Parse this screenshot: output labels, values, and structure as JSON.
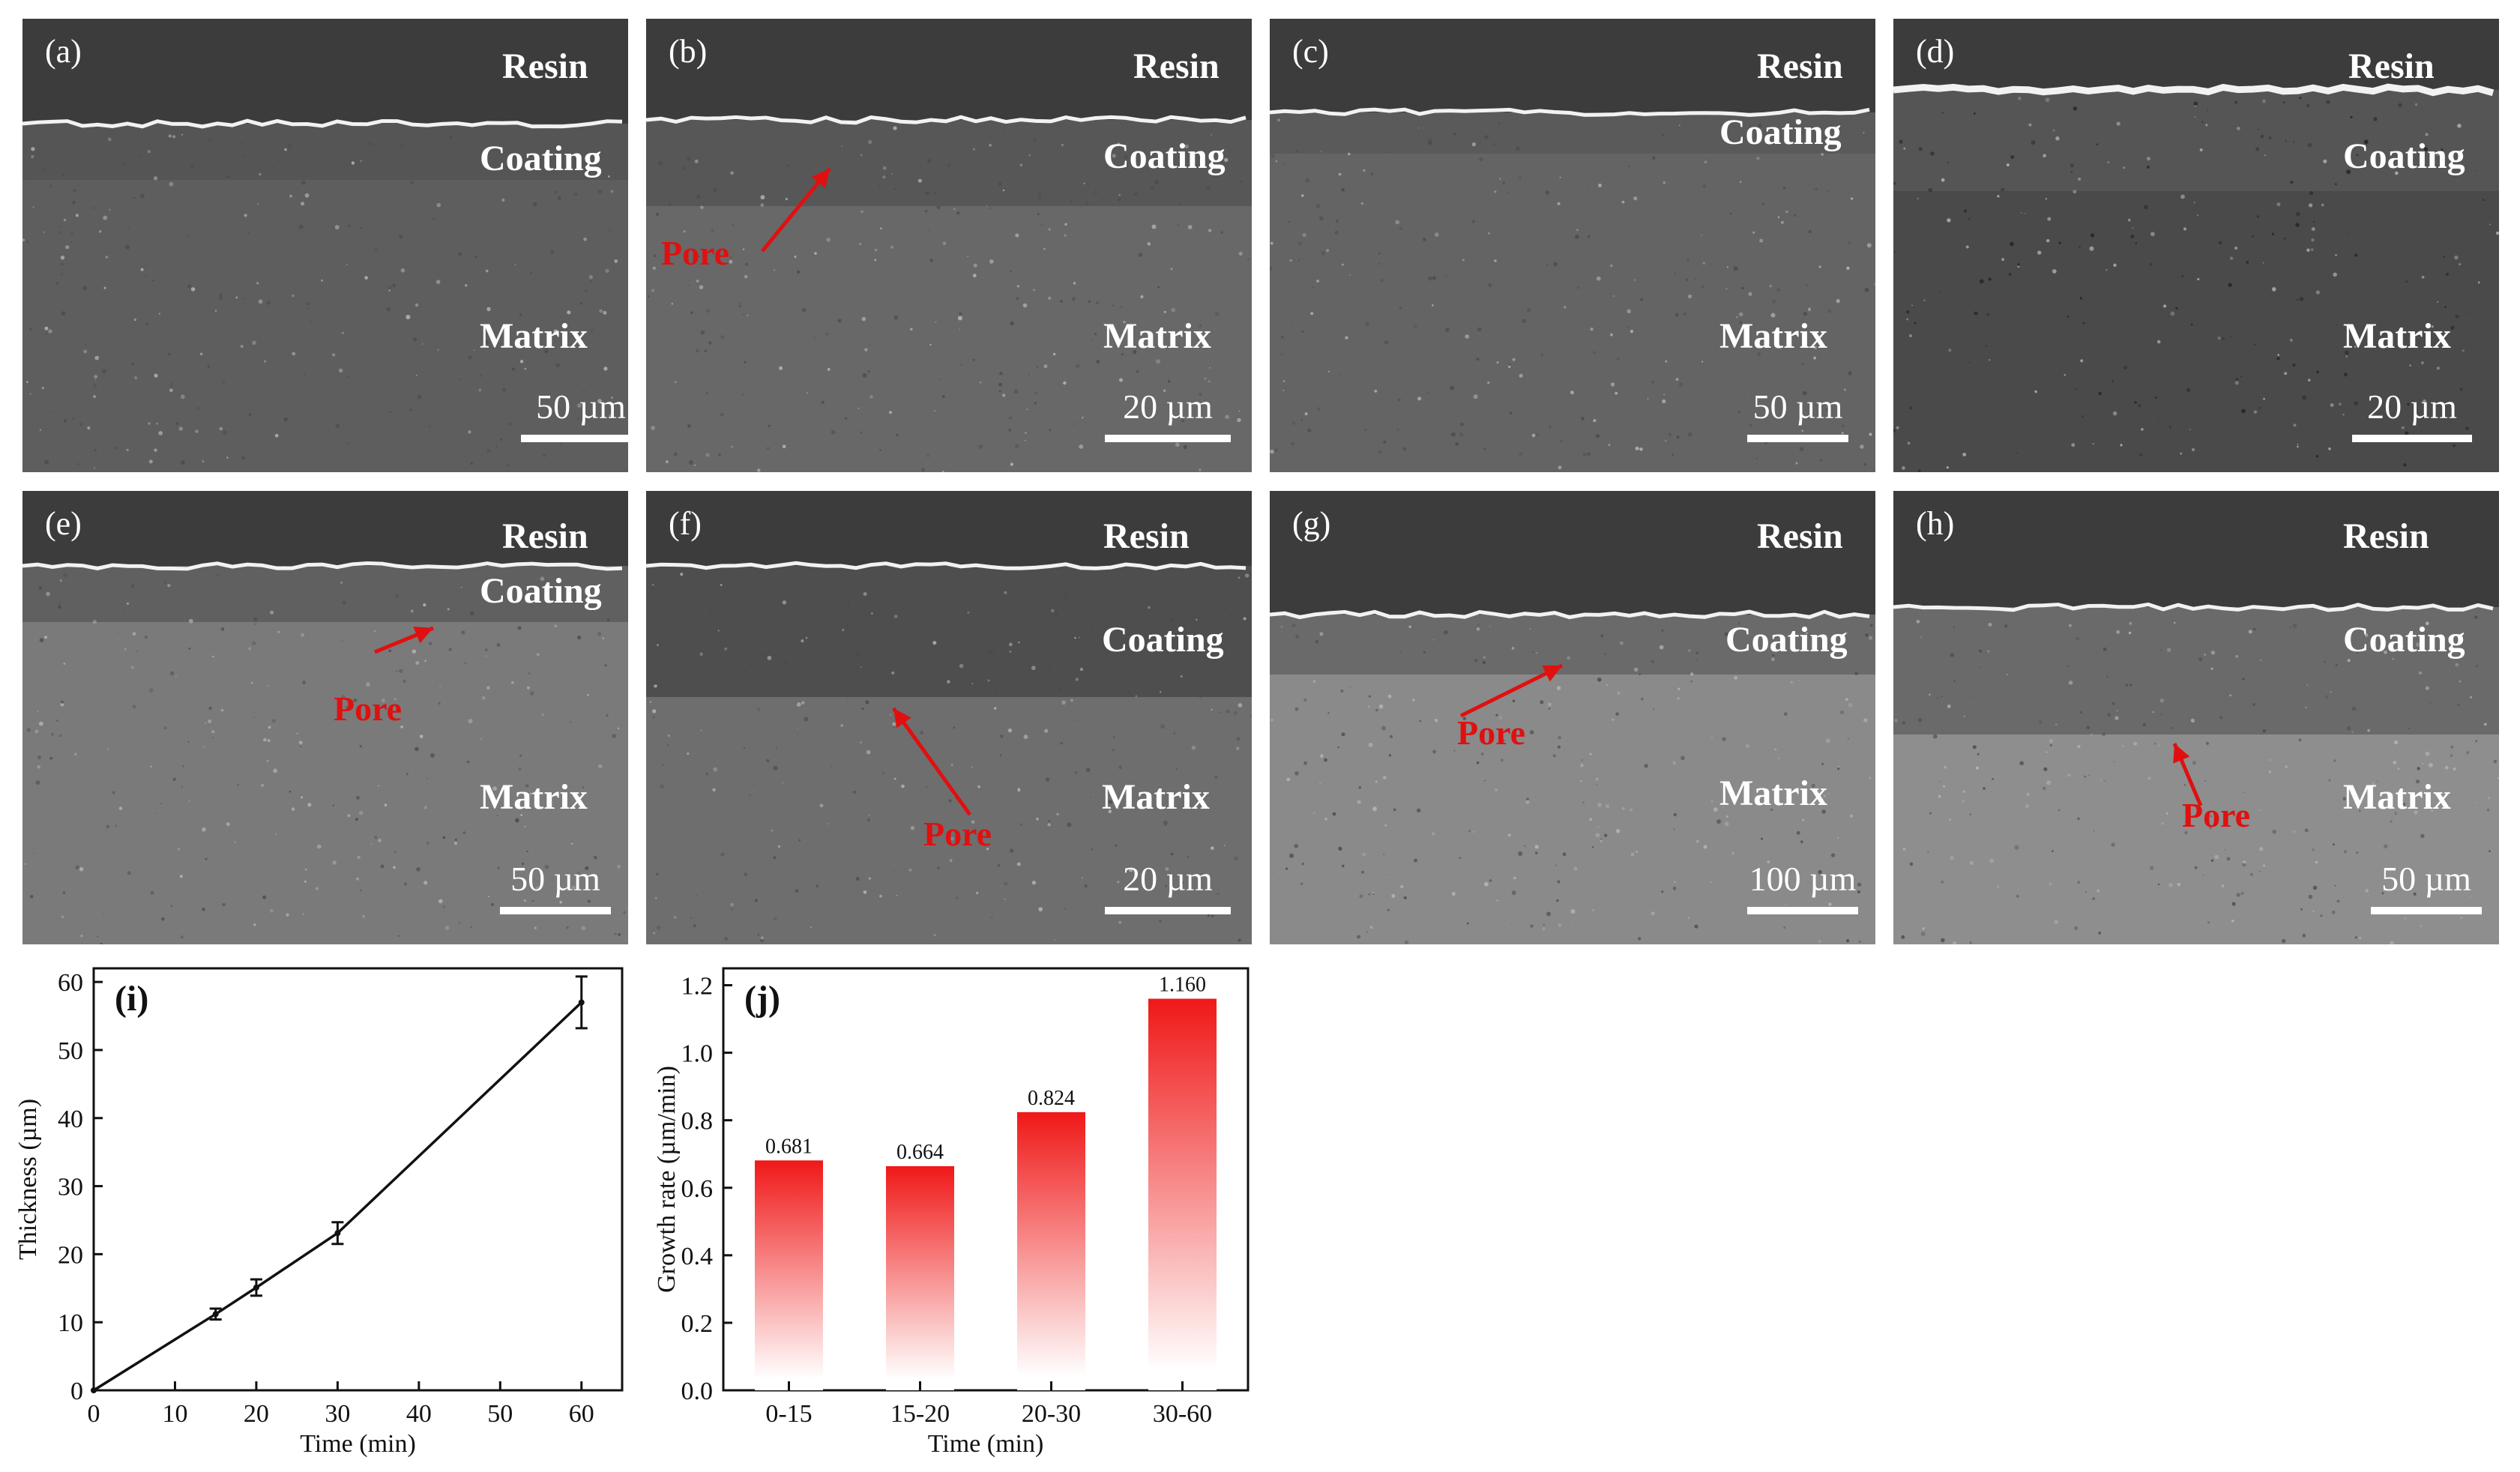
{
  "panels": [
    {
      "id": "a",
      "tag": "(a)",
      "resin": "Resin",
      "coating": "Coating",
      "matrix": "Matrix",
      "scale": "50 µm",
      "pores": []
    },
    {
      "id": "b",
      "tag": "(b)",
      "resin": "Resin",
      "coating": "Coating",
      "matrix": "Matrix",
      "scale": "20 µm",
      "pores": [
        "Pore"
      ]
    },
    {
      "id": "c",
      "tag": "(c)",
      "resin": "Resin",
      "coating": "Coating",
      "matrix": "Matrix",
      "scale": "50 µm",
      "pores": []
    },
    {
      "id": "d",
      "tag": "(d)",
      "resin": "Resin",
      "coating": "Coating",
      "matrix": "Matrix",
      "scale": "20 µm",
      "pores": []
    },
    {
      "id": "e",
      "tag": "(e)",
      "resin": "Resin",
      "coating": "Coating",
      "matrix": "Matrix",
      "scale": "50 µm",
      "pores": [
        "Pore"
      ]
    },
    {
      "id": "f",
      "tag": "(f)",
      "resin": "Resin",
      "coating": "Coating",
      "matrix": "Matrix",
      "scale": "20 µm",
      "pores": [
        "Pore"
      ]
    },
    {
      "id": "g",
      "tag": "(g)",
      "resin": "Resin",
      "coating": "Coating",
      "matrix": "Matrix",
      "scale": "100 µm",
      "pores": [
        "Pore"
      ]
    },
    {
      "id": "h",
      "tag": "(h)",
      "resin": "Resin",
      "coating": "Coating",
      "matrix": "Matrix",
      "scale": "50 µm",
      "pores": [
        "Pore"
      ]
    }
  ],
  "colors": {
    "pore": "#e01010",
    "bar_top": "#f01818",
    "bar_bottom": "#ffffff"
  },
  "chart_data": [
    {
      "type": "line",
      "panel_tag": "(i)",
      "xlabel": "Time (min)",
      "ylabel": "Thickness (µm)",
      "xlim": [
        0,
        65
      ],
      "ylim": [
        0,
        62
      ],
      "xticks": [
        0,
        10,
        20,
        30,
        40,
        50,
        60
      ],
      "yticks": [
        0,
        10,
        20,
        30,
        40,
        50,
        60
      ],
      "x": [
        0,
        15,
        20,
        30,
        60
      ],
      "y": [
        0,
        11.2,
        15.1,
        23.1,
        57.0
      ],
      "yerr": [
        0,
        0.8,
        1.2,
        1.6,
        3.8
      ],
      "grid": false
    },
    {
      "type": "bar",
      "panel_tag": "(j)",
      "xlabel": "Time (min)",
      "ylabel": "Growth rate (µm/min)",
      "categories": [
        "0-15",
        "15-20",
        "20-30",
        "30-60"
      ],
      "values": [
        0.681,
        0.664,
        0.824,
        1.16
      ],
      "value_labels": [
        "0.681",
        "0.664",
        "0.824",
        "1.160"
      ],
      "ylim": [
        0,
        1.25
      ],
      "yticks": [
        "0.0",
        "0.2",
        "0.4",
        "0.6",
        "0.8",
        "1.0",
        "1.2"
      ],
      "grid": false
    }
  ]
}
